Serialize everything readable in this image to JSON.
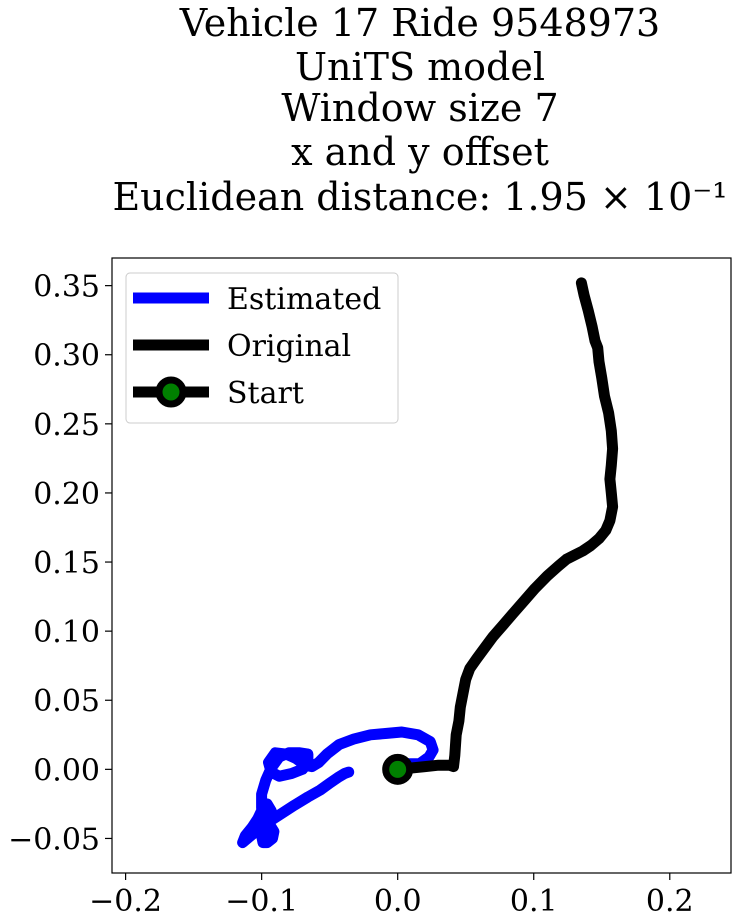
{
  "chart_data": {
    "type": "line",
    "title_lines": [
      "Vehicle 17 Ride 9548973",
      "UniTS model",
      "Window size 7",
      "x and y offset",
      "Euclidean distance: 1.95 × 10⁻¹"
    ],
    "xlabel": "",
    "ylabel": "",
    "xlim": [
      -0.21,
      0.245
    ],
    "ylim": [
      -0.075,
      0.37
    ],
    "x_ticks": [
      -0.2,
      -0.1,
      0.0,
      0.1,
      0.2
    ],
    "x_tick_labels": [
      "−0.2",
      "−0.1",
      "0.0",
      "0.1",
      "0.2"
    ],
    "y_ticks": [
      -0.05,
      0.0,
      0.05,
      0.1,
      0.15,
      0.2,
      0.25,
      0.3,
      0.35
    ],
    "y_tick_labels": [
      "−0.05",
      "0.00",
      "0.05",
      "0.10",
      "0.15",
      "0.20",
      "0.25",
      "0.30",
      "0.35"
    ],
    "grid": false,
    "legend_position": "top-left",
    "series": [
      {
        "name": "Estimated",
        "color": "#0000ff",
        "x": [
          0.0,
          0.008,
          0.016,
          0.023,
          0.026,
          0.024,
          0.015,
          0.003,
          -0.008,
          -0.02,
          -0.032,
          -0.043,
          -0.052,
          -0.058,
          -0.063,
          -0.068,
          -0.075,
          -0.082,
          -0.09,
          -0.095,
          -0.093,
          -0.087,
          -0.078,
          -0.07,
          -0.066,
          -0.066,
          -0.072,
          -0.08,
          -0.087,
          -0.093,
          -0.097,
          -0.1,
          -0.1,
          -0.096,
          -0.091,
          -0.092,
          -0.096,
          -0.099,
          -0.1,
          -0.097,
          -0.093,
          -0.096,
          -0.1,
          -0.103,
          -0.107,
          -0.112,
          -0.114,
          -0.108,
          -0.098,
          -0.087,
          -0.076,
          -0.066,
          -0.057,
          -0.05,
          -0.044,
          -0.039,
          -0.036
        ],
        "y": [
          0.0,
          0.004,
          0.004,
          0.009,
          0.014,
          0.02,
          0.025,
          0.027,
          0.026,
          0.025,
          0.022,
          0.018,
          0.011,
          0.005,
          0.002,
          0.003,
          0.008,
          0.011,
          0.012,
          0.005,
          -0.002,
          -0.005,
          -0.003,
          0.0,
          0.005,
          0.011,
          0.012,
          0.012,
          0.009,
          0.001,
          -0.008,
          -0.018,
          -0.028,
          -0.037,
          -0.045,
          -0.05,
          -0.053,
          -0.053,
          -0.048,
          -0.04,
          -0.03,
          -0.025,
          -0.03,
          -0.036,
          -0.042,
          -0.048,
          -0.053,
          -0.048,
          -0.04,
          -0.033,
          -0.026,
          -0.02,
          -0.015,
          -0.01,
          -0.006,
          -0.003,
          -0.002
        ]
      },
      {
        "name": "Original",
        "color": "#000000",
        "x": [
          0.0,
          0.01,
          0.02,
          0.03,
          0.038,
          0.041,
          0.042,
          0.043,
          0.045,
          0.046,
          0.048,
          0.05,
          0.053,
          0.058,
          0.064,
          0.07,
          0.078,
          0.085,
          0.093,
          0.101,
          0.11,
          0.118,
          0.124,
          0.13,
          0.136,
          0.142,
          0.148,
          0.153,
          0.156,
          0.158,
          0.157,
          0.156,
          0.157,
          0.158,
          0.157,
          0.155,
          0.152,
          0.15,
          0.148,
          0.147,
          0.145,
          0.143,
          0.14,
          0.137,
          0.135
        ],
        "y": [
          0.0,
          0.001,
          0.002,
          0.003,
          0.003,
          0.002,
          0.01,
          0.025,
          0.035,
          0.045,
          0.055,
          0.065,
          0.073,
          0.08,
          0.088,
          0.096,
          0.105,
          0.113,
          0.122,
          0.131,
          0.14,
          0.147,
          0.152,
          0.155,
          0.158,
          0.162,
          0.167,
          0.173,
          0.18,
          0.19,
          0.2,
          0.21,
          0.22,
          0.232,
          0.245,
          0.258,
          0.27,
          0.283,
          0.295,
          0.305,
          0.31,
          0.32,
          0.332,
          0.343,
          0.352
        ]
      },
      {
        "name": "Start",
        "color": "#000000",
        "marker_fill": "#008000",
        "x": [
          0.0
        ],
        "y": [
          0.0
        ]
      }
    ]
  }
}
